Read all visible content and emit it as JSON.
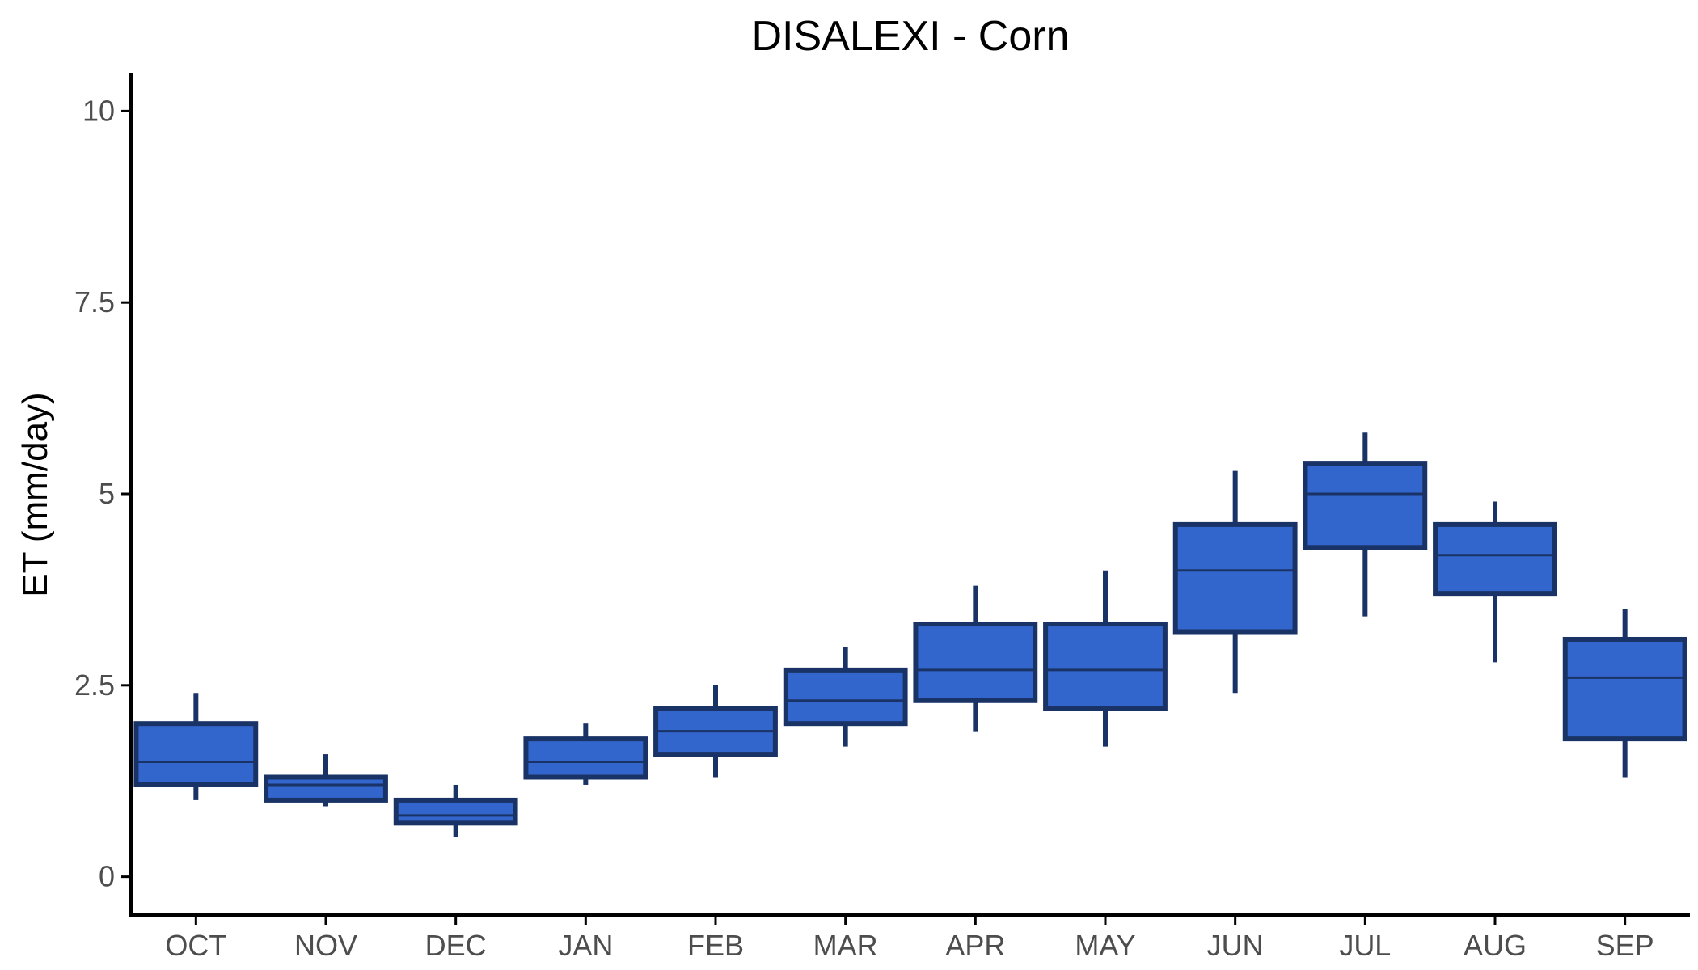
{
  "chart_data": {
    "type": "boxplot",
    "title": "DISALEXI - Corn",
    "xlabel": "",
    "ylabel": "ET (mm/day)",
    "ylim": [
      -0.5,
      10.5
    ],
    "yticks": [
      0,
      2.5,
      5,
      7.5,
      10
    ],
    "ytick_labels": [
      "0",
      "2.5",
      "5",
      "7.5",
      "10"
    ],
    "categories": [
      "OCT",
      "NOV",
      "DEC",
      "JAN",
      "FEB",
      "MAR",
      "APR",
      "MAY",
      "JUN",
      "JUL",
      "AUG",
      "SEP"
    ],
    "boxes": [
      {
        "category": "OCT",
        "whisker_low": 1.0,
        "q1": 1.2,
        "median": 1.5,
        "q3": 2.0,
        "whisker_high": 2.4
      },
      {
        "category": "NOV",
        "whisker_low": 0.92,
        "q1": 1.0,
        "median": 1.2,
        "q3": 1.3,
        "whisker_high": 1.6
      },
      {
        "category": "DEC",
        "whisker_low": 0.52,
        "q1": 0.7,
        "median": 0.8,
        "q3": 1.0,
        "whisker_high": 1.2
      },
      {
        "category": "JAN",
        "whisker_low": 1.2,
        "q1": 1.3,
        "median": 1.5,
        "q3": 1.8,
        "whisker_high": 2.0
      },
      {
        "category": "FEB",
        "whisker_low": 1.3,
        "q1": 1.6,
        "median": 1.9,
        "q3": 2.2,
        "whisker_high": 2.5
      },
      {
        "category": "MAR",
        "whisker_low": 1.7,
        "q1": 2.0,
        "median": 2.3,
        "q3": 2.7,
        "whisker_high": 3.0
      },
      {
        "category": "APR",
        "whisker_low": 1.9,
        "q1": 2.3,
        "median": 2.7,
        "q3": 3.3,
        "whisker_high": 3.8
      },
      {
        "category": "MAY",
        "whisker_low": 1.7,
        "q1": 2.2,
        "median": 2.7,
        "q3": 3.3,
        "whisker_high": 4.0
      },
      {
        "category": "JUN",
        "whisker_low": 2.4,
        "q1": 3.2,
        "median": 4.0,
        "q3": 4.6,
        "whisker_high": 5.3
      },
      {
        "category": "JUL",
        "whisker_low": 3.4,
        "q1": 4.3,
        "median": 5.0,
        "q3": 5.4,
        "whisker_high": 5.8
      },
      {
        "category": "AUG",
        "whisker_low": 2.8,
        "q1": 3.7,
        "median": 4.2,
        "q3": 4.6,
        "whisker_high": 4.9
      },
      {
        "category": "SEP",
        "whisker_low": 1.3,
        "q1": 1.8,
        "median": 2.6,
        "q3": 3.1,
        "whisker_high": 3.5
      }
    ],
    "grid": false,
    "legend": "none",
    "colors": {
      "box_fill": "#3366cc",
      "box_stroke": "#1a3366",
      "axis": "#000000",
      "tick_text": "#4d4d4d"
    }
  }
}
